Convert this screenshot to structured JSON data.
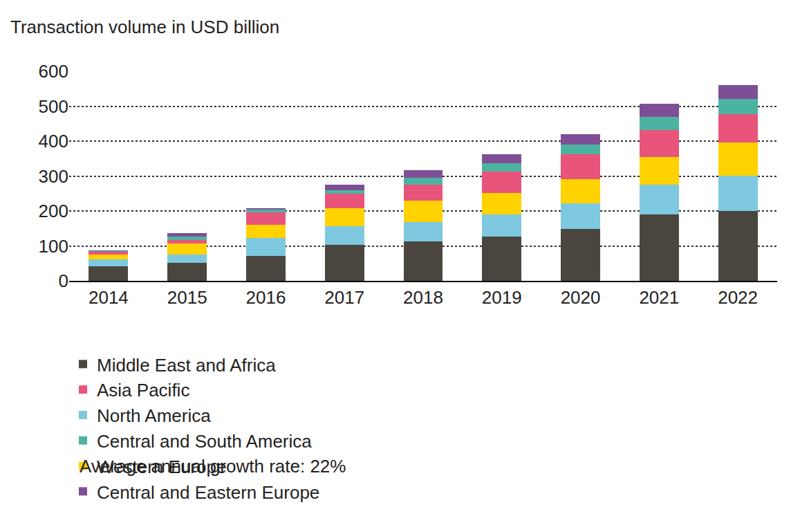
{
  "chart_data": {
    "type": "bar",
    "ylabel": "Transaction volume in USD billion",
    "note": "Average annual growth rate: 22%",
    "categories": [
      "2014",
      "2015",
      "2016",
      "2017",
      "2018",
      "2019",
      "2020",
      "2021",
      "2022"
    ],
    "series": [
      {
        "name": "Middle East and Africa",
        "color": "#4a463f",
        "values": [
          41,
          52,
          72,
          102,
          112,
          126,
          149,
          190,
          201
        ]
      },
      {
        "name": "North America",
        "color": "#7ec8e0",
        "values": [
          20,
          24,
          51,
          54,
          57,
          65,
          72,
          85,
          100
        ]
      },
      {
        "name": "Western Europe",
        "color": "#ffd200",
        "values": [
          15,
          30,
          37,
          52,
          60,
          60,
          71,
          80,
          95
        ]
      },
      {
        "name": "Asia Pacific",
        "color": "#e9547a",
        "values": [
          7,
          10,
          37,
          41,
          46,
          61,
          70,
          76,
          82
        ]
      },
      {
        "name": "Central and South America",
        "color": "#4db3a1",
        "values": [
          2,
          10,
          6,
          11,
          21,
          24,
          28,
          39,
          42
        ]
      },
      {
        "name": "Central and Eastern Europe",
        "color": "#7e4f96",
        "values": [
          2,
          10,
          5,
          15,
          20,
          26,
          30,
          37,
          41
        ]
      }
    ],
    "ylim": [
      0,
      600
    ],
    "yticks": [
      0,
      100,
      200,
      300,
      400,
      500,
      600
    ],
    "stacked": true,
    "grid": true,
    "legend": "bottom"
  }
}
